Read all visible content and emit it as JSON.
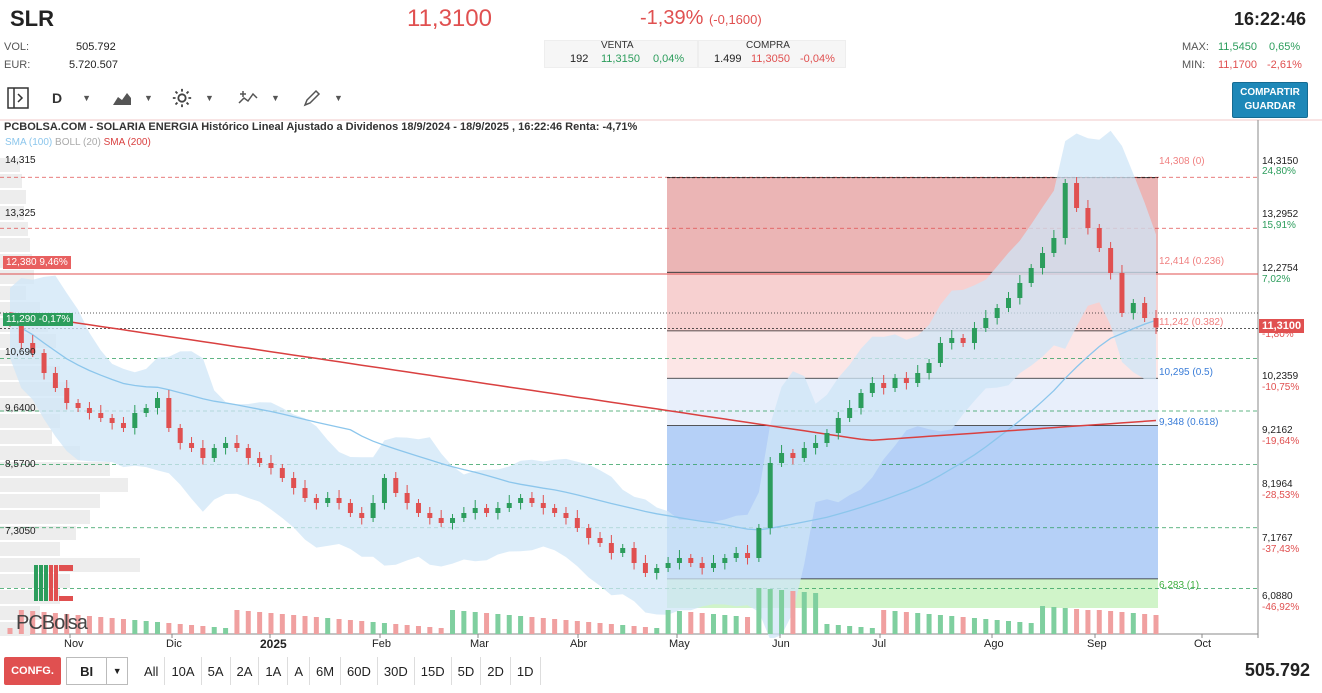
{
  "header": {
    "symbol": "SLR",
    "price": "11,3100",
    "change_pct": "-1,39%",
    "change_abs": "(-0,1600)",
    "time": "16:22:46",
    "vol_label": "VOL:",
    "vol_value": "505.792",
    "eur_label": "EUR:",
    "eur_value": "5.720.507",
    "venta_label": "VENTA",
    "venta_qty": "192",
    "venta_price": "11,3150",
    "venta_pct": "0,04%",
    "compra_label": "COMPRA",
    "compra_qty": "1.499",
    "compra_price": "11,3050",
    "compra_pct": "-0,04%",
    "max_label": "MAX:",
    "max_value": "11,5450",
    "max_pct": "0,65%",
    "min_label": "MIN:",
    "min_value": "11,1700",
    "min_pct": "-2,61%"
  },
  "toolbar": {
    "period": "D",
    "share_line1": "COMPARTIR",
    "share_line2": "GUARDAR"
  },
  "chart_header": "PCBOLSA.COM - SOLARIA ENERGIA Histórico Lineal Ajustado a Dividenos 18/9/2024 - 18/9/2025 , 16:22:46 Renta: -4,71%",
  "legend": {
    "sma100": "SMA (100)",
    "boll": "BOLL (20)",
    "sma200": "SMA (200)"
  },
  "colors": {
    "up": "#2c9d5c",
    "down": "#e05050",
    "sma100": "#8cc6ec",
    "sma200": "#d94040",
    "boll_fill": "#cde6f8",
    "accent": "#1e88b8"
  },
  "chart_data": {
    "type": "candlestick",
    "title": "SOLARIA ENERGIA",
    "x_labels": [
      "Nov",
      "Dic",
      "2025",
      "Feb",
      "Mar",
      "Abr",
      "May",
      "Jun",
      "Jul",
      "Ago",
      "Sep",
      "Oct"
    ],
    "left_ticks": [
      "14,315",
      "13,325",
      "10,690",
      "9,6400",
      "8,5700",
      "7,3050"
    ],
    "right_ticks": [
      {
        "value": "14,3150",
        "pct": "24,80%"
      },
      {
        "value": "13,2952",
        "pct": "15,91%"
      },
      {
        "value": "12,2754",
        "pct": "7,02%"
      },
      {
        "value": "10,2359",
        "pct": "-10,75%"
      },
      {
        "value": "9,2162",
        "pct": "-19,64%"
      },
      {
        "value": "8,1964",
        "pct": "-28,53%"
      },
      {
        "value": "7,1767",
        "pct": "-37,43%"
      },
      {
        "value": "6,0880",
        "pct": "-46,92%"
      }
    ],
    "left_markers": [
      {
        "label": "12,380",
        "pct": "9,46%"
      },
      {
        "label": "11,290",
        "pct": "-0,17%"
      }
    ],
    "current_price_label": "11,3100",
    "current_pct_partial": "-1,80%",
    "fibonacci": [
      {
        "label": "14,308 (0)",
        "value": 14.308
      },
      {
        "label": "12,414 (0.236)",
        "value": 12.414
      },
      {
        "label": "11,242 (0.382)",
        "value": 11.242
      },
      {
        "label": "10,295 (0.5)",
        "value": 10.295
      },
      {
        "label": "9,348 (0.618)",
        "value": 9.348
      },
      {
        "label": "6,283 (1)",
        "value": 6.283
      }
    ],
    "ylim": [
      5.7,
      14.6
    ],
    "close_path": [
      11.4,
      11.0,
      10.8,
      10.4,
      10.1,
      9.8,
      9.7,
      9.6,
      9.5,
      9.4,
      9.3,
      9.6,
      9.7,
      9.9,
      9.3,
      9.0,
      8.9,
      8.7,
      8.9,
      9.0,
      8.9,
      8.7,
      8.6,
      8.5,
      8.3,
      8.1,
      7.9,
      7.8,
      7.9,
      7.8,
      7.6,
      7.5,
      7.8,
      8.3,
      8.0,
      7.8,
      7.6,
      7.5,
      7.4,
      7.5,
      7.6,
      7.7,
      7.6,
      7.7,
      7.8,
      7.9,
      7.8,
      7.7,
      7.6,
      7.5,
      7.3,
      7.1,
      7.0,
      6.8,
      6.9,
      6.6,
      6.4,
      6.5,
      6.6,
      6.7,
      6.6,
      6.5,
      6.6,
      6.7,
      6.8,
      6.7,
      7.3,
      8.6,
      8.8,
      8.7,
      8.9,
      9.0,
      9.2,
      9.5,
      9.7,
      10.0,
      10.2,
      10.1,
      10.3,
      10.2,
      10.4,
      10.6,
      11.0,
      11.1,
      11.0,
      11.3,
      11.5,
      11.7,
      11.9,
      12.2,
      12.5,
      12.8,
      13.1,
      14.2,
      13.7,
      13.3,
      12.9,
      12.4,
      11.6,
      11.8,
      11.5,
      11.31
    ]
  },
  "bottom": {
    "config_label": "CONFG.",
    "mode": "BI",
    "ranges": [
      "All",
      "10A",
      "5A",
      "2A",
      "1A",
      "A",
      "6M",
      "60D",
      "30D",
      "15D",
      "5D",
      "2D",
      "1D"
    ],
    "total_volume": "505.792"
  },
  "logo_text": "PCBolsa"
}
